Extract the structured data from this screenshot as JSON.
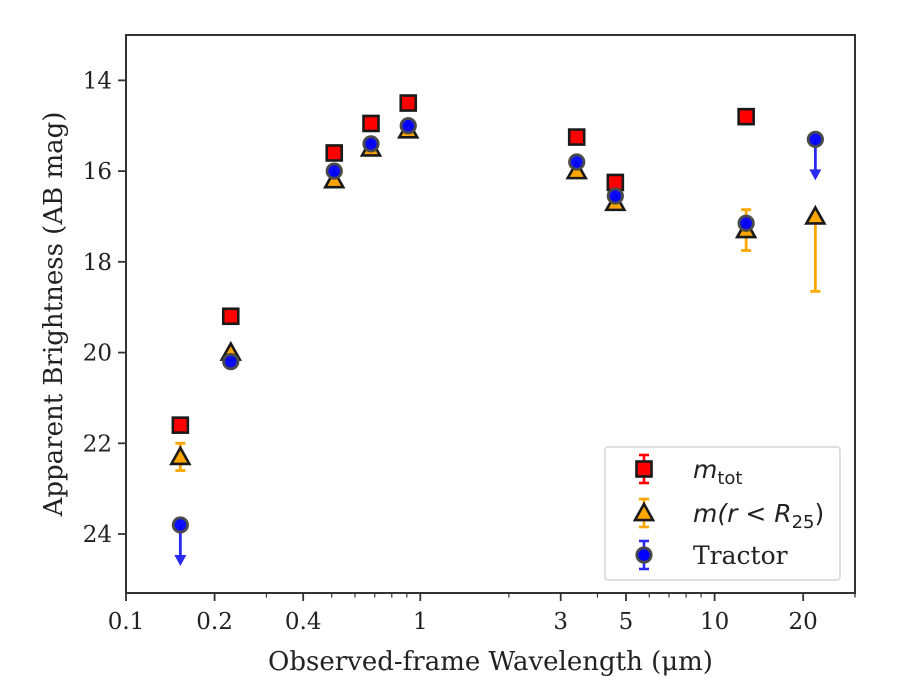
{
  "chart_data": {
    "type": "scatter",
    "title": "",
    "xlabel": "Observed-frame Wavelength (μm)",
    "ylabel": "Apparent Brightness (AB mag)",
    "xscale": "log",
    "xlim": [
      0.1,
      30
    ],
    "ylim": [
      25.3,
      13
    ],
    "y_inverted": true,
    "x_ticks": [
      0.1,
      0.2,
      0.4,
      1,
      3,
      5,
      10,
      20
    ],
    "x_tick_labels": [
      "0.1",
      "0.2",
      "0.4",
      "1",
      "3",
      "5",
      "10",
      "20"
    ],
    "y_ticks": [
      14,
      16,
      18,
      20,
      22,
      24
    ],
    "y_tick_labels": [
      "14",
      "16",
      "18",
      "20",
      "22",
      "24"
    ],
    "legend_position": "lower-right",
    "grid": false,
    "series": [
      {
        "name": "m_tot",
        "legend": {
          "base": "m",
          "sub": "tot"
        },
        "marker": "square",
        "color": "#ff0000",
        "edge_color": "#1a1a1a",
        "error_color": "#ff0000",
        "points": [
          {
            "x": 0.153,
            "y": 21.6
          },
          {
            "x": 0.227,
            "y": 19.2
          },
          {
            "x": 0.51,
            "y": 15.6
          },
          {
            "x": 0.68,
            "y": 14.95
          },
          {
            "x": 0.91,
            "y": 14.5
          },
          {
            "x": 3.4,
            "y": 15.25
          },
          {
            "x": 4.6,
            "y": 16.25
          },
          {
            "x": 12.8,
            "y": 14.8
          }
        ]
      },
      {
        "name": "m(r < R_25)",
        "legend": {
          "pre": "m(r < R",
          "sub": "25",
          "post": ")"
        },
        "marker": "triangle",
        "color": "#ffa500",
        "edge_color": "#1a1a1a",
        "error_color": "#ffa500",
        "points": [
          {
            "x": 0.153,
            "y": 22.3,
            "err": [
              0.3,
              0.3
            ]
          },
          {
            "x": 0.227,
            "y": 20.0
          },
          {
            "x": 0.51,
            "y": 16.2
          },
          {
            "x": 0.68,
            "y": 15.5
          },
          {
            "x": 0.91,
            "y": 15.1
          },
          {
            "x": 3.4,
            "y": 16.0
          },
          {
            "x": 4.6,
            "y": 16.7
          },
          {
            "x": 12.8,
            "y": 17.3,
            "err": [
              0.45,
              0.45
            ]
          },
          {
            "x": 22.0,
            "y": 17.0,
            "err": [
              0.0,
              1.65
            ]
          }
        ]
      },
      {
        "name": "Tractor",
        "legend": {
          "base": "Tractor"
        },
        "marker": "circle",
        "color": "#0000ff",
        "edge_color": "#4a4a4a",
        "error_color": "#2a2aee",
        "points": [
          {
            "x": 0.153,
            "y": 23.8,
            "upper_limit": true
          },
          {
            "x": 0.227,
            "y": 20.2
          },
          {
            "x": 0.51,
            "y": 16.0
          },
          {
            "x": 0.68,
            "y": 15.4
          },
          {
            "x": 0.91,
            "y": 15.0
          },
          {
            "x": 3.4,
            "y": 15.8
          },
          {
            "x": 4.6,
            "y": 16.55
          },
          {
            "x": 12.8,
            "y": 17.15
          },
          {
            "x": 22.0,
            "y": 15.3,
            "upper_limit": true
          }
        ]
      }
    ]
  }
}
